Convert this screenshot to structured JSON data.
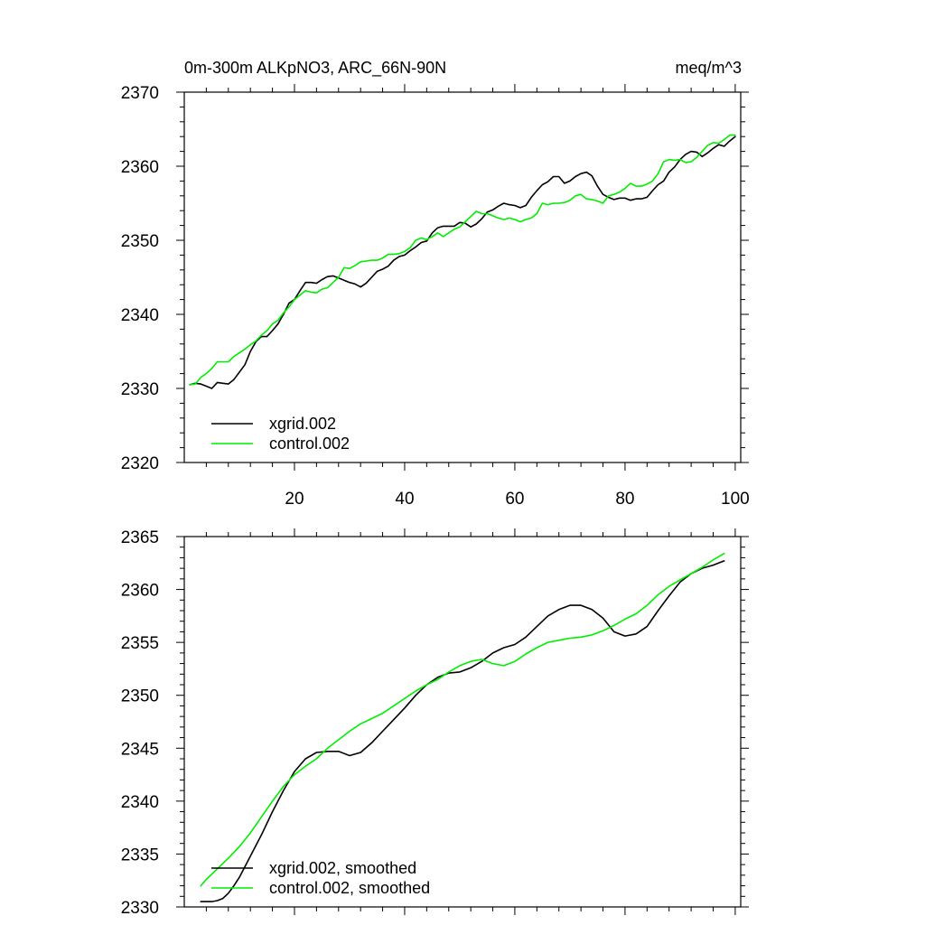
{
  "chart_data": [
    {
      "type": "line",
      "title": "0m-300m ALKpNO3, ARC_66N-90N",
      "units": "meq/m^3",
      "xlim": [
        0,
        101
      ],
      "ylim": [
        2320,
        2370
      ],
      "xticks": [
        20,
        40,
        60,
        80,
        100
      ],
      "xtick_labels": [
        "20",
        "40",
        "60",
        "80",
        "100"
      ],
      "yticks": [
        2320,
        2330,
        2340,
        2350,
        2360,
        2370
      ],
      "ytick_labels": [
        "2320",
        "2330",
        "2340",
        "2350",
        "2360",
        "2370"
      ],
      "legend_location": "lower-left",
      "series": [
        {
          "name": "xgrid.002",
          "color": "#000000",
          "x": [
            1,
            2,
            3,
            4,
            5,
            6,
            7,
            8,
            9,
            10,
            11,
            12,
            13,
            14,
            15,
            16,
            17,
            18,
            19,
            20,
            21,
            22,
            23,
            24,
            25,
            26,
            27,
            28,
            29,
            30,
            31,
            32,
            33,
            34,
            35,
            36,
            37,
            38,
            39,
            40,
            41,
            42,
            43,
            44,
            45,
            46,
            47,
            48,
            49,
            50,
            51,
            52,
            53,
            54,
            55,
            56,
            57,
            58,
            59,
            60,
            61,
            62,
            63,
            64,
            65,
            66,
            67,
            68,
            69,
            70,
            71,
            72,
            73,
            74,
            75,
            76,
            77,
            78,
            79,
            80,
            81,
            82,
            83,
            84,
            85,
            86,
            87,
            88,
            89,
            90,
            91,
            92,
            93,
            94,
            95,
            96,
            97,
            98,
            99,
            100
          ],
          "values": [
            2330.5,
            2330.7,
            2330.6,
            2330.3,
            2330.0,
            2330.8,
            2330.7,
            2330.6,
            2331.2,
            2332.2,
            2333.2,
            2335.0,
            2336.3,
            2337.0,
            2337.0,
            2337.8,
            2338.7,
            2340.0,
            2341.5,
            2342.0,
            2343.2,
            2344.3,
            2344.3,
            2344.2,
            2344.7,
            2345.1,
            2345.2,
            2344.9,
            2344.6,
            2344.3,
            2344.1,
            2343.7,
            2344.2,
            2345.0,
            2345.8,
            2346.1,
            2346.5,
            2347.3,
            2347.8,
            2348.0,
            2348.6,
            2349.1,
            2349.7,
            2349.9,
            2351.0,
            2351.7,
            2351.9,
            2351.9,
            2351.9,
            2352.4,
            2352.3,
            2351.8,
            2352.2,
            2352.9,
            2353.8,
            2354.1,
            2354.6,
            2355.0,
            2354.8,
            2354.7,
            2354.4,
            2354.7,
            2355.8,
            2356.7,
            2357.5,
            2357.9,
            2358.6,
            2358.6,
            2357.7,
            2358.0,
            2358.6,
            2359.0,
            2359.2,
            2358.7,
            2357.3,
            2356.2,
            2355.8,
            2355.5,
            2355.7,
            2355.7,
            2355.4,
            2355.6,
            2355.6,
            2355.8,
            2356.7,
            2357.5,
            2358.0,
            2359.2,
            2359.9,
            2360.9,
            2361.6,
            2362.0,
            2361.9,
            2361.3,
            2361.8,
            2362.4,
            2362.9,
            2362.7,
            2363.4,
            2364.0
          ]
        },
        {
          "name": "control.002",
          "color": "#00ee00",
          "x": [
            1,
            2,
            3,
            4,
            5,
            6,
            7,
            8,
            9,
            10,
            11,
            12,
            13,
            14,
            15,
            16,
            17,
            18,
            19,
            20,
            21,
            22,
            23,
            24,
            25,
            26,
            27,
            28,
            29,
            30,
            31,
            32,
            33,
            34,
            35,
            36,
            37,
            38,
            39,
            40,
            41,
            42,
            43,
            44,
            45,
            46,
            47,
            48,
            49,
            50,
            51,
            52,
            53,
            54,
            55,
            56,
            57,
            58,
            59,
            60,
            61,
            62,
            63,
            64,
            65,
            66,
            67,
            68,
            69,
            70,
            71,
            72,
            73,
            74,
            75,
            76,
            77,
            78,
            79,
            80,
            81,
            82,
            83,
            84,
            85,
            86,
            87,
            88,
            89,
            90,
            91,
            92,
            93,
            94,
            95,
            96,
            97,
            98,
            99,
            100
          ],
          "values": [
            2330.5,
            2330.6,
            2331.5,
            2332.0,
            2332.7,
            2333.6,
            2333.6,
            2333.6,
            2334.3,
            2334.8,
            2335.3,
            2335.9,
            2336.4,
            2337.2,
            2337.8,
            2338.7,
            2339.2,
            2340.2,
            2341.0,
            2342.0,
            2342.6,
            2343.2,
            2343.0,
            2342.9,
            2343.4,
            2343.6,
            2344.3,
            2345.0,
            2346.3,
            2346.2,
            2346.6,
            2347.1,
            2347.2,
            2347.3,
            2347.3,
            2347.6,
            2348.1,
            2348.1,
            2348.2,
            2348.5,
            2349.0,
            2350.0,
            2350.3,
            2350.1,
            2350.5,
            2351.0,
            2350.5,
            2351.0,
            2351.5,
            2351.8,
            2352.5,
            2353.2,
            2353.9,
            2353.6,
            2353.6,
            2353.3,
            2353.0,
            2352.8,
            2353.0,
            2352.8,
            2352.5,
            2352.8,
            2353.0,
            2353.6,
            2355.0,
            2354.8,
            2355.0,
            2355.0,
            2355.1,
            2355.4,
            2356.0,
            2356.2,
            2355.6,
            2355.5,
            2355.3,
            2355.0,
            2356.0,
            2356.2,
            2356.5,
            2357.0,
            2357.7,
            2357.3,
            2357.3,
            2357.6,
            2358.0,
            2359.0,
            2360.6,
            2360.9,
            2360.8,
            2360.9,
            2360.5,
            2360.6,
            2361.2,
            2362.0,
            2362.8,
            2363.2,
            2363.1,
            2363.6,
            2364.2,
            2364.2
          ]
        }
      ]
    },
    {
      "type": "line",
      "title": "",
      "xlim": [
        0,
        101
      ],
      "ylim": [
        2330,
        2365
      ],
      "xticks": [
        20,
        40,
        60,
        80,
        100
      ],
      "xtick_labels": [],
      "yticks": [
        2330,
        2335,
        2340,
        2345,
        2350,
        2355,
        2360,
        2365
      ],
      "ytick_labels": [
        "2330",
        "2335",
        "2340",
        "2345",
        "2350",
        "2355",
        "2360",
        "2365"
      ],
      "legend_location": "lower-left",
      "series": [
        {
          "name": "xgrid.002, smoothed",
          "color": "#000000",
          "x": [
            3,
            4,
            5,
            6,
            7,
            8,
            9,
            10,
            12,
            14,
            16,
            18,
            20,
            22,
            24,
            26,
            28,
            30,
            32,
            34,
            36,
            38,
            40,
            42,
            44,
            46,
            48,
            50,
            52,
            54,
            56,
            58,
            60,
            62,
            64,
            66,
            68,
            70,
            72,
            74,
            76,
            78,
            80,
            82,
            84,
            86,
            88,
            90,
            92,
            94,
            96,
            98
          ],
          "values": [
            2330.5,
            2330.5,
            2330.5,
            2330.6,
            2330.8,
            2331.3,
            2332.0,
            2332.8,
            2334.8,
            2336.8,
            2339.0,
            2341.0,
            2342.8,
            2344.0,
            2344.6,
            2344.7,
            2344.7,
            2344.3,
            2344.6,
            2345.5,
            2346.6,
            2347.7,
            2348.8,
            2350.0,
            2351.0,
            2351.7,
            2352.1,
            2352.2,
            2352.6,
            2353.2,
            2354.0,
            2354.5,
            2354.8,
            2355.5,
            2356.5,
            2357.5,
            2358.1,
            2358.5,
            2358.5,
            2358.1,
            2357.3,
            2356.0,
            2355.6,
            2355.8,
            2356.5,
            2358.0,
            2359.4,
            2360.7,
            2361.5,
            2362.0,
            2362.3,
            2362.7
          ]
        },
        {
          "name": "control.002, smoothed",
          "color": "#00ee00",
          "x": [
            3,
            4,
            5,
            6,
            8,
            10,
            12,
            14,
            16,
            18,
            20,
            22,
            24,
            26,
            28,
            30,
            32,
            34,
            36,
            38,
            40,
            42,
            44,
            46,
            48,
            50,
            52,
            54,
            56,
            58,
            60,
            62,
            64,
            66,
            68,
            70,
            72,
            74,
            76,
            78,
            80,
            82,
            84,
            86,
            88,
            90,
            92,
            94,
            96,
            98
          ],
          "values": [
            2332.0,
            2332.6,
            2333.1,
            2333.6,
            2334.6,
            2335.7,
            2337.0,
            2338.5,
            2340.0,
            2341.4,
            2342.5,
            2343.3,
            2344.0,
            2345.0,
            2345.8,
            2346.6,
            2347.3,
            2347.8,
            2348.3,
            2349.0,
            2349.7,
            2350.4,
            2351.0,
            2351.5,
            2352.2,
            2352.8,
            2353.2,
            2353.4,
            2353.0,
            2352.8,
            2353.2,
            2353.9,
            2354.5,
            2355.0,
            2355.2,
            2355.4,
            2355.5,
            2355.7,
            2356.1,
            2356.6,
            2357.2,
            2357.7,
            2358.5,
            2359.5,
            2360.3,
            2360.9,
            2361.5,
            2362.1,
            2362.8,
            2363.4
          ]
        }
      ]
    }
  ]
}
